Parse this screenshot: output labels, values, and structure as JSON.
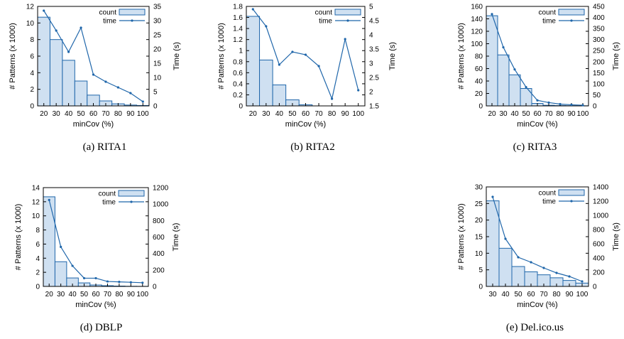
{
  "colors": {
    "bar_fill": "#cfe0f1",
    "bar_stroke": "#1f66aa",
    "line": "#1f66aa",
    "axis": "#000000"
  },
  "charts": [
    {
      "caption": "(a) RITA1",
      "chart_data": {
        "type": "bar+line",
        "categories": [
          "20",
          "30",
          "40",
          "50",
          "60",
          "70",
          "80",
          "90",
          "100"
        ],
        "xlabel": "minCov (%)",
        "ylabel": "# Patterns (x 1000)",
        "y2label": "Time (s)",
        "ylim": [
          0,
          12
        ],
        "yticks": [
          "0",
          "2",
          "4",
          "6",
          "8",
          "10",
          "12"
        ],
        "y2lim": [
          0,
          35
        ],
        "y2ticks": [
          "0",
          "5",
          "10",
          "15",
          "20",
          "25",
          "30",
          "35"
        ],
        "legend": [
          "count",
          "time"
        ],
        "series": [
          {
            "name": "count",
            "axis": "left",
            "values": [
              10.7,
              8.0,
              5.5,
              3.0,
              1.3,
              0.6,
              0.25,
              0.1,
              0.05
            ]
          },
          {
            "name": "time",
            "axis": "right",
            "values": [
              33.5,
              26.5,
              19.0,
              27.5,
              11.0,
              8.5,
              6.5,
              4.5,
              1.5
            ]
          }
        ]
      }
    },
    {
      "caption": "(b) RITA2",
      "chart_data": {
        "type": "bar+line",
        "categories": [
          "20",
          "30",
          "40",
          "50",
          "60",
          "70",
          "80",
          "90",
          "100"
        ],
        "xlabel": "minCov (%)",
        "ylabel": "# Patterns (x 1000)",
        "y2label": "Time (s)",
        "ylim": [
          0,
          1.8
        ],
        "yticks": [
          "0",
          "0.2",
          "0.4",
          "0.6",
          "0.8",
          "1",
          "1.2",
          "1.4",
          "1.6",
          "1.8"
        ],
        "y2lim": [
          1.5,
          5
        ],
        "y2ticks": [
          "1.5",
          "2",
          "2.5",
          "3",
          "3.5",
          "4",
          "4.5",
          "5"
        ],
        "legend": [
          "count",
          "time"
        ],
        "series": [
          {
            "name": "count",
            "axis": "left",
            "values": [
              1.62,
              0.83,
              0.38,
              0.11,
              0.02,
              0.0,
              0.0,
              0.0,
              0.0
            ]
          },
          {
            "name": "time",
            "axis": "right",
            "values": [
              4.9,
              4.3,
              2.95,
              3.4,
              3.3,
              2.9,
              1.75,
              3.85,
              2.05
            ]
          }
        ]
      }
    },
    {
      "caption": "(c) RITA3",
      "chart_data": {
        "type": "bar+line",
        "categories": [
          "20",
          "30",
          "40",
          "50",
          "60",
          "70",
          "80",
          "90",
          "100"
        ],
        "xlabel": "minCov (%)",
        "ylabel": "# Patterns (x 1000)",
        "y2label": "Time (s)",
        "ylim": [
          0,
          160
        ],
        "yticks": [
          "0",
          "20",
          "40",
          "60",
          "80",
          "100",
          "120",
          "140",
          "160"
        ],
        "y2lim": [
          0,
          450
        ],
        "y2ticks": [
          "0",
          "50",
          "100",
          "150",
          "200",
          "250",
          "300",
          "350",
          "400",
          "450"
        ],
        "legend": [
          "count",
          "time"
        ],
        "series": [
          {
            "name": "count",
            "axis": "left",
            "values": [
              145,
              82,
              50,
              28,
              4,
              1,
              0.5,
              0.3,
              0.2
            ]
          },
          {
            "name": "time",
            "axis": "right",
            "values": [
              415,
              265,
              165,
              85,
              25,
              15,
              8,
              5,
              3
            ]
          }
        ]
      }
    },
    {
      "caption": "(d) DBLP",
      "chart_data": {
        "type": "bar+line",
        "categories": [
          "20",
          "30",
          "40",
          "50",
          "60",
          "70",
          "80",
          "90",
          "100"
        ],
        "xlabel": "minCov (%)",
        "ylabel": "# Patterns (x 1000)",
        "y2label": "Time (s)",
        "ylim": [
          0,
          14
        ],
        "yticks": [
          "0",
          "2",
          "4",
          "6",
          "8",
          "10",
          "12",
          "14"
        ],
        "y2lim": [
          0,
          1200
        ],
        "y2ticks": [
          "0",
          "200",
          "400",
          "600",
          "800",
          "1000",
          "1200"
        ],
        "legend": [
          "count",
          "time"
        ],
        "series": [
          {
            "name": "count",
            "axis": "left",
            "values": [
              12.7,
              3.5,
              1.2,
              0.5,
              0.2,
              0.1,
              0.05,
              0.02,
              0.01
            ]
          },
          {
            "name": "time",
            "axis": "right",
            "values": [
              1050,
              480,
              250,
              100,
              100,
              60,
              55,
              50,
              45
            ]
          }
        ]
      }
    },
    {
      "caption": "(e) Del.ico.us",
      "chart_data": {
        "type": "bar+line",
        "categories": [
          "30",
          "40",
          "50",
          "60",
          "70",
          "80",
          "90",
          "100"
        ],
        "xlabel": "minCov (%)",
        "ylabel": "# Patterns (x 1000)",
        "y2label": "Time (s)",
        "ylim": [
          0,
          30
        ],
        "yticks": [
          "0",
          "5",
          "10",
          "15",
          "20",
          "25",
          "30"
        ],
        "y2lim": [
          0,
          1400
        ],
        "y2ticks": [
          "0",
          "200",
          "400",
          "600",
          "800",
          "1000",
          "1200",
          "1400"
        ],
        "legend": [
          "count",
          "time"
        ],
        "series": [
          {
            "name": "count",
            "axis": "left",
            "values": [
              25.8,
              11.5,
              6.0,
              4.4,
              3.5,
              2.6,
              1.8,
              1.0
            ]
          },
          {
            "name": "time",
            "axis": "right",
            "values": [
              1260,
              670,
              410,
              340,
              260,
              190,
              140,
              70
            ]
          }
        ]
      }
    }
  ]
}
